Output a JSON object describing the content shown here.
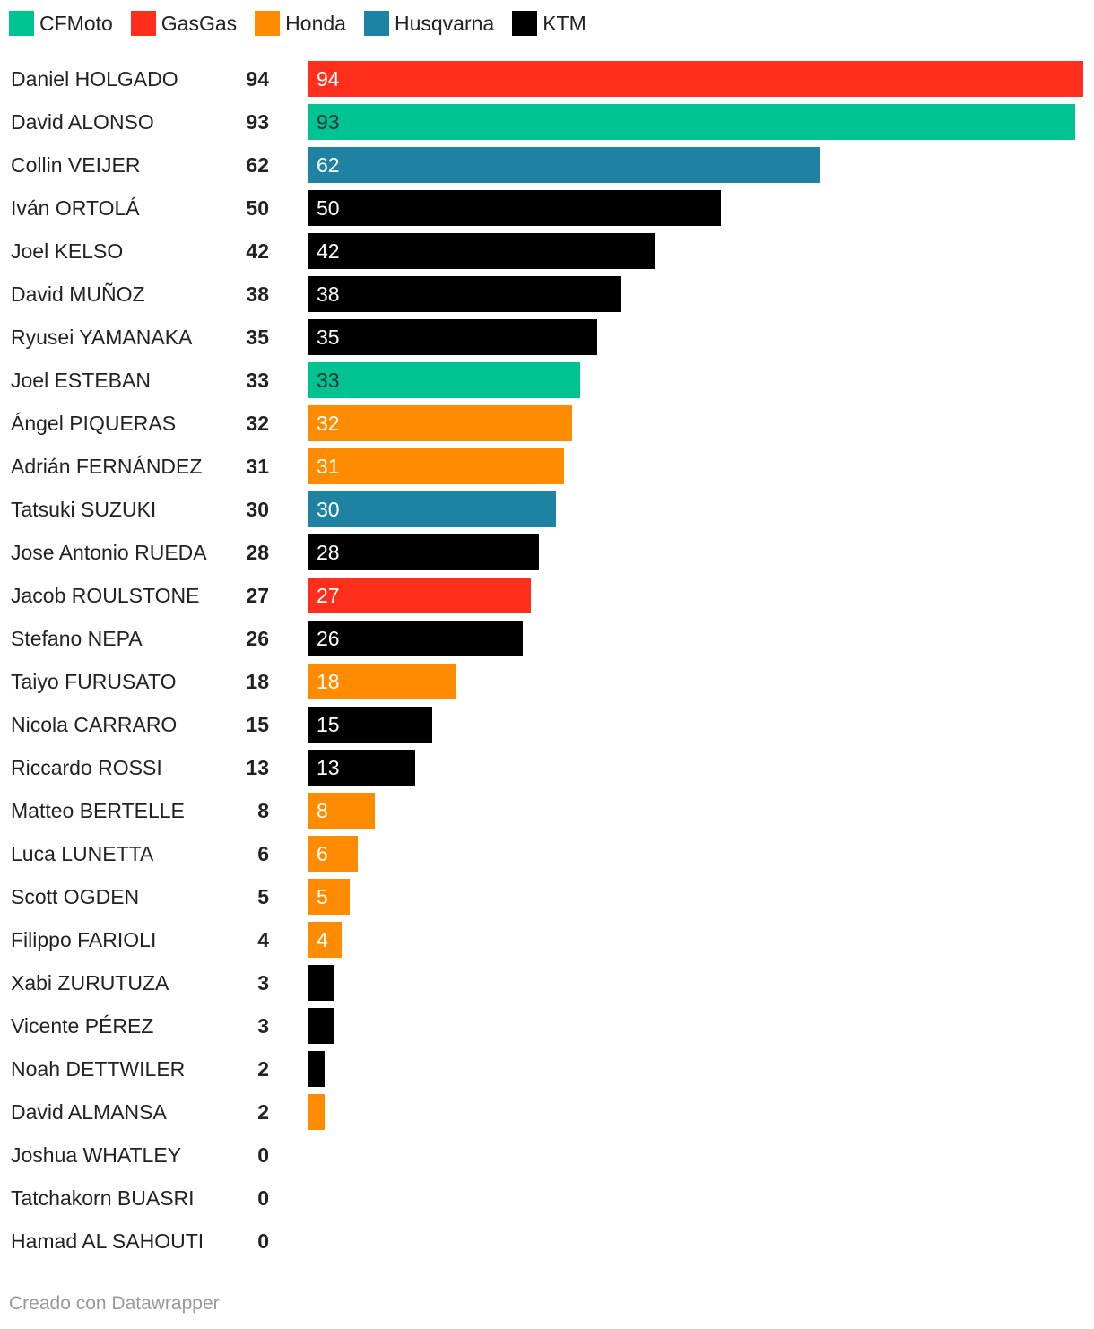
{
  "legend": [
    {
      "name": "CFMoto",
      "color": "#00c392"
    },
    {
      "name": "GasGas",
      "color": "#ff2f1c"
    },
    {
      "name": "Honda",
      "color": "#ff8b00"
    },
    {
      "name": "Husqvarna",
      "color": "#1e82a2"
    },
    {
      "name": "KTM",
      "color": "#000000"
    }
  ],
  "chart_data": {
    "type": "bar",
    "orientation": "horizontal",
    "xlim": [
      0,
      94
    ],
    "categories": [
      "Daniel HOLGADO",
      "David ALONSO",
      "Collin VEIJER",
      "Iván ORTOLÁ",
      "Joel KELSO",
      "David MUÑOZ",
      "Ryusei YAMANAKA",
      "Joel ESTEBAN",
      "Ángel PIQUERAS",
      "Adrián FERNÁNDEZ",
      "Tatsuki SUZUKI",
      "Jose Antonio RUEDA",
      "Jacob ROULSTONE",
      "Stefano NEPA",
      "Taiyo FURUSATO",
      "Nicola CARRARO",
      "Riccardo ROSSI",
      "Matteo BERTELLE",
      "Luca LUNETTA",
      "Scott OGDEN",
      "Filippo FARIOLI",
      "Xabi ZURUTUZA",
      "Vicente PÉREZ",
      "Noah DETTWILER",
      "David ALMANSA",
      "Joshua WHATLEY",
      "Tatchakorn BUASRI",
      "Hamad AL SAHOUTI"
    ],
    "values": [
      94,
      93,
      62,
      50,
      42,
      38,
      35,
      33,
      32,
      31,
      30,
      28,
      27,
      26,
      18,
      15,
      13,
      8,
      6,
      5,
      4,
      3,
      3,
      2,
      2,
      0,
      0,
      0
    ],
    "manufacturers": [
      "GasGas",
      "CFMoto",
      "Husqvarna",
      "KTM",
      "KTM",
      "KTM",
      "KTM",
      "CFMoto",
      "Honda",
      "Honda",
      "Husqvarna",
      "KTM",
      "GasGas",
      "KTM",
      "Honda",
      "KTM",
      "KTM",
      "Honda",
      "Honda",
      "Honda",
      "Honda",
      "KTM",
      "KTM",
      "KTM",
      "Honda",
      "",
      "",
      ""
    ],
    "bar_labels": [
      "94",
      "93",
      "62",
      "50",
      "42",
      "38",
      "35",
      "33",
      "32",
      "31",
      "30",
      "28",
      "27",
      "26",
      "18",
      "15",
      "13",
      "8",
      "6",
      "5",
      "4",
      "",
      "",
      "",
      "",
      "",
      "",
      ""
    ],
    "value_labels": [
      "94",
      "93",
      "62",
      "50",
      "42",
      "38",
      "35",
      "33",
      "32",
      "31",
      "30",
      "28",
      "27",
      "26",
      "18",
      "15",
      "13",
      "8",
      "6",
      "5",
      "4",
      "3",
      "3",
      "2",
      "2",
      "0",
      "0",
      "0"
    ]
  },
  "credit": "Creado con Datawrapper"
}
